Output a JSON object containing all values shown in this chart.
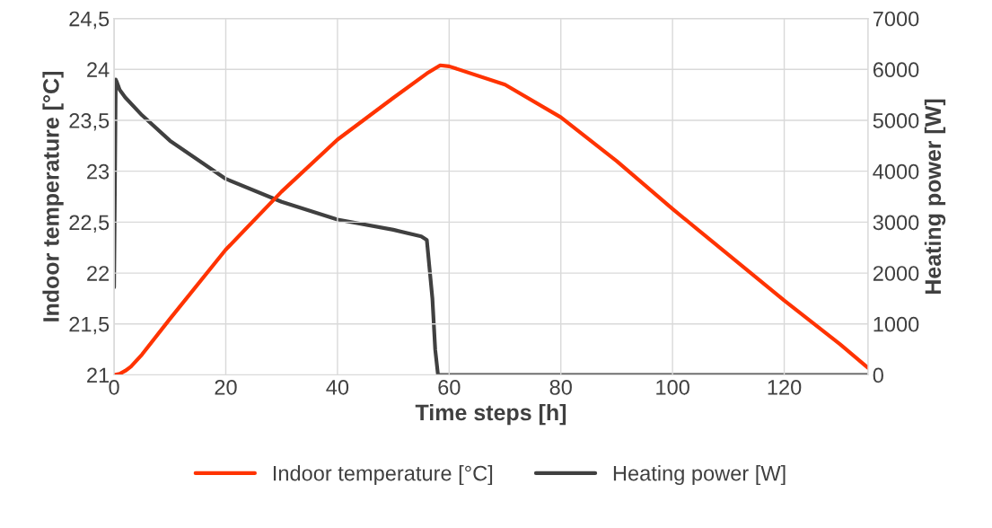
{
  "chart_data": {
    "type": "line",
    "xlabel": "Time steps [h]",
    "ylabel": "Indoor temperature [°C]",
    "y2label": "Heating power [W]",
    "xlim": [
      0,
      135
    ],
    "xticks": [
      0,
      20,
      40,
      60,
      80,
      100,
      120
    ],
    "ylim": [
      21,
      24.5
    ],
    "yticks": [
      {
        "value": 21,
        "label": "21"
      },
      {
        "value": 21.5,
        "label": "21,5"
      },
      {
        "value": 22,
        "label": "22"
      },
      {
        "value": 22.5,
        "label": "22,5"
      },
      {
        "value": 23,
        "label": "23"
      },
      {
        "value": 23.5,
        "label": "23,5"
      },
      {
        "value": 24,
        "label": "24"
      },
      {
        "value": 24.5,
        "label": "24,5"
      }
    ],
    "y2lim": [
      0,
      7000
    ],
    "y2ticks": [
      0,
      1000,
      2000,
      3000,
      4000,
      5000,
      6000,
      7000
    ],
    "grid": true,
    "legend": "bottom",
    "series": [
      {
        "name": "Indoor temperature [°C]",
        "color": "#ff3300",
        "x": [
          0,
          1,
          2,
          3,
          5,
          10,
          20,
          30,
          40,
          50,
          56,
          58.4,
          60,
          70,
          80,
          90,
          100,
          110,
          120,
          130,
          135
        ],
        "values": [
          21.0,
          21.01,
          21.04,
          21.08,
          21.2,
          21.55,
          22.23,
          22.8,
          23.31,
          23.72,
          23.96,
          24.04,
          24.03,
          23.85,
          23.53,
          23.1,
          22.63,
          22.18,
          21.73,
          21.3,
          21.07
        ]
      },
      {
        "name": "Heating power [W]",
        "color": "#404040",
        "axis": "y2",
        "x": [
          0,
          0.3,
          0.5,
          1,
          2,
          5,
          10,
          20,
          30,
          40,
          50,
          55,
          56,
          57,
          57.5,
          58,
          60,
          135
        ],
        "values": [
          1720,
          5800,
          5750,
          5600,
          5450,
          5100,
          4600,
          3850,
          3400,
          3050,
          2850,
          2720,
          2650,
          1500,
          500,
          0,
          0,
          0
        ]
      }
    ]
  }
}
